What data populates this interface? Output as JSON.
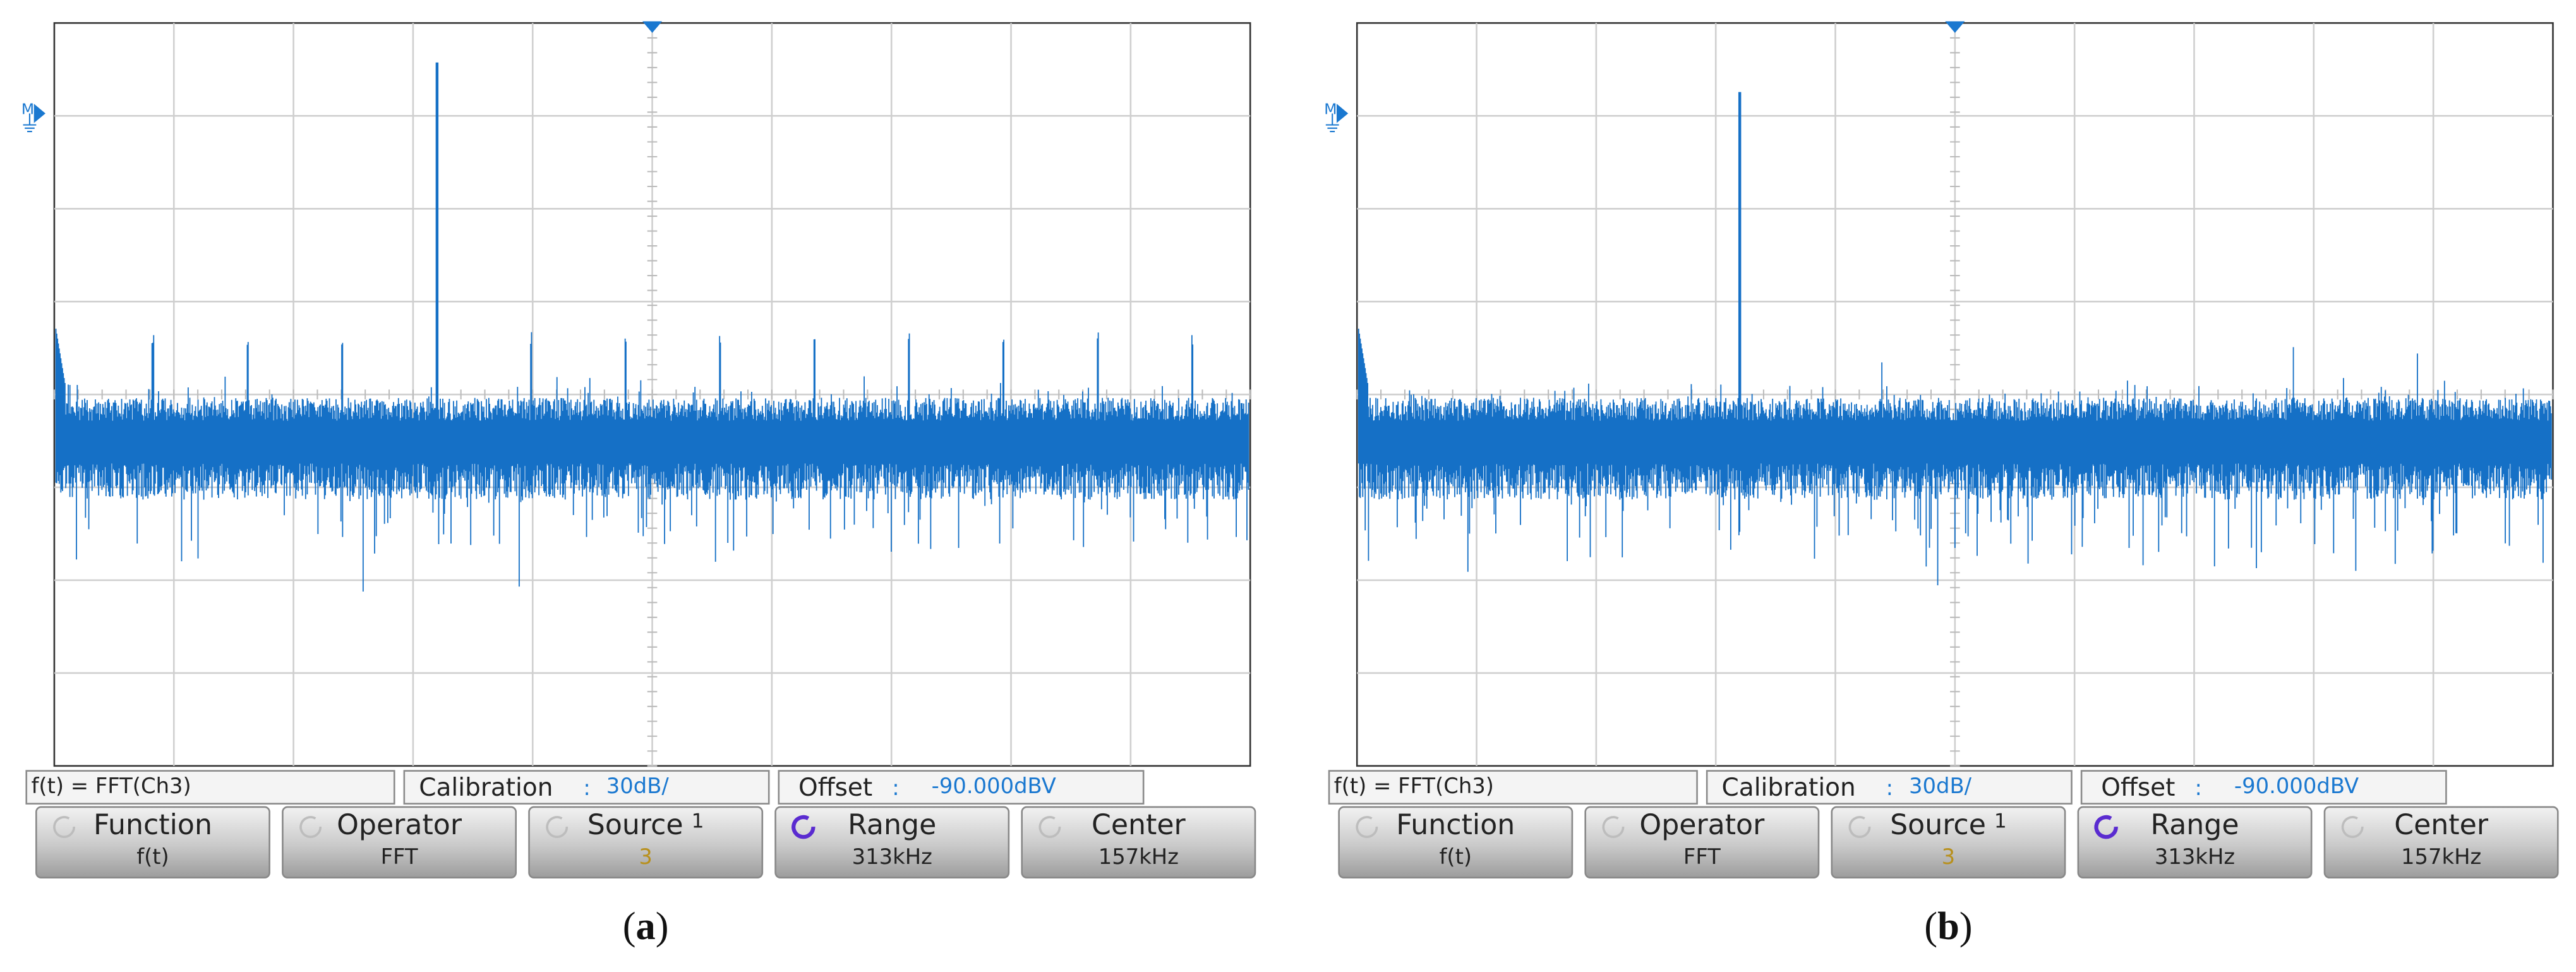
{
  "panels": [
    {
      "marker_label": "M",
      "status": {
        "formula": "f(t) = FFT(Ch3)",
        "calibration_label": "Calibration",
        "calibration_sep": ":",
        "calibration_value": "30dB/",
        "offset_label": "Offset",
        "offset_sep": ":",
        "offset_value": "-90.000dBV"
      },
      "softkeys": [
        {
          "label": "Function",
          "value": "f(t)"
        },
        {
          "label": "Operator",
          "value": "FFT"
        },
        {
          "label": "Source",
          "superscript": "1",
          "value": "3"
        },
        {
          "label": "Range",
          "value": "313kHz"
        },
        {
          "label": "Center",
          "value": "157kHz"
        }
      ],
      "caption": {
        "open": "(",
        "letter": "a",
        "close": ")"
      }
    },
    {
      "marker_label": "M",
      "status": {
        "formula": "f(t) = FFT(Ch3)",
        "calibration_label": "Calibration",
        "calibration_sep": ":",
        "calibration_value": "30dB/",
        "offset_label": "Offset",
        "offset_sep": ":",
        "offset_value": "-90.000dBV"
      },
      "softkeys": [
        {
          "label": "Function",
          "value": "f(t)"
        },
        {
          "label": "Operator",
          "value": "FFT"
        },
        {
          "label": "Source",
          "superscript": "1",
          "value": "3"
        },
        {
          "label": "Range",
          "value": "313kHz"
        },
        {
          "label": "Center",
          "value": "157kHz"
        }
      ],
      "caption": {
        "open": "(",
        "letter": "b",
        "close": ")"
      }
    }
  ]
}
